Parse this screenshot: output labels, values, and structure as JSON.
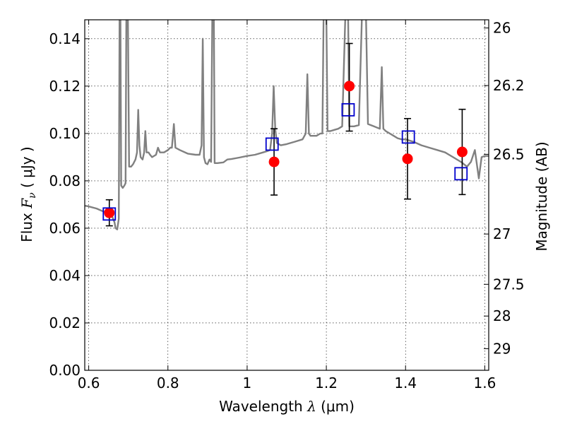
{
  "chart_data": {
    "type": "scatter",
    "xlabel": {
      "prefix": "Wavelength  ",
      "symbol": "λ",
      "unit": " (μm)"
    },
    "ylabel": {
      "prefix": "Flux  ",
      "symbol": "F",
      "sub": "ν",
      "unit": "  ( μJy )"
    },
    "y2label": "Magnitude (AB)",
    "xlim": [
      0.59,
      1.61
    ],
    "ylim": [
      0.0,
      0.148
    ],
    "grid": true,
    "x_ticks": [
      {
        "v": 0.6,
        "label": "0.6"
      },
      {
        "v": 0.8,
        "label": "0.8"
      },
      {
        "v": 1.0,
        "label": "1"
      },
      {
        "v": 1.2,
        "label": "1.2"
      },
      {
        "v": 1.4,
        "label": "1.4"
      },
      {
        "v": 1.6,
        "label": "1.6"
      }
    ],
    "y_ticks": [
      {
        "v": 0.0,
        "label": "0.00"
      },
      {
        "v": 0.02,
        "label": "0.02"
      },
      {
        "v": 0.04,
        "label": "0.04"
      },
      {
        "v": 0.06,
        "label": "0.06"
      },
      {
        "v": 0.08,
        "label": "0.08"
      },
      {
        "v": 0.1,
        "label": "0.10"
      },
      {
        "v": 0.12,
        "label": "0.12"
      },
      {
        "v": 0.14,
        "label": "0.14"
      }
    ],
    "mag_ticks": [
      {
        "mag": 26,
        "label": "26"
      },
      {
        "mag": 26.2,
        "label": "26.2"
      },
      {
        "mag": 26.5,
        "label": "26.5"
      },
      {
        "mag": 27,
        "label": "27"
      },
      {
        "mag": 27.5,
        "label": "27.5"
      },
      {
        "mag": 28,
        "label": "28"
      },
      {
        "mag": 29,
        "label": "29"
      }
    ],
    "observed": {
      "color": "#ff0000",
      "points": [
        {
          "x": 0.652,
          "y": 0.0665,
          "err_lo": 0.0055,
          "err_hi": 0.0055
        },
        {
          "x": 1.068,
          "y": 0.088,
          "err_lo": 0.014,
          "err_hi": 0.014
        },
        {
          "x": 1.258,
          "y": 0.12,
          "err_lo": 0.019,
          "err_hi": 0.018
        },
        {
          "x": 1.405,
          "y": 0.0893,
          "err_lo": 0.017,
          "err_hi": 0.017
        },
        {
          "x": 1.543,
          "y": 0.0922,
          "err_lo": 0.018,
          "err_hi": 0.018
        }
      ]
    },
    "model_photometry": {
      "color": "#0000cc",
      "points": [
        {
          "x": 0.652,
          "y": 0.066
        },
        {
          "x": 1.063,
          "y": 0.0955
        },
        {
          "x": 1.255,
          "y": 0.11
        },
        {
          "x": 1.407,
          "y": 0.0985
        },
        {
          "x": 1.54,
          "y": 0.083
        }
      ]
    },
    "model_spectrum": {
      "color": "#808080",
      "points": [
        [
          0.59,
          0.0695
        ],
        [
          0.6,
          0.0692
        ],
        [
          0.62,
          0.0683
        ],
        [
          0.635,
          0.0672
        ],
        [
          0.65,
          0.0662
        ],
        [
          0.66,
          0.0646
        ],
        [
          0.665,
          0.0625
        ],
        [
          0.668,
          0.06
        ],
        [
          0.672,
          0.0595
        ],
        [
          0.676,
          0.064
        ],
        [
          0.678,
          0.15
        ],
        [
          0.68,
          0.15
        ],
        [
          0.682,
          0.078
        ],
        [
          0.686,
          0.077
        ],
        [
          0.69,
          0.078
        ],
        [
          0.693,
          0.079
        ],
        [
          0.695,
          0.15
        ],
        [
          0.699,
          0.15
        ],
        [
          0.702,
          0.086
        ],
        [
          0.707,
          0.086
        ],
        [
          0.712,
          0.087
        ],
        [
          0.718,
          0.089
        ],
        [
          0.722,
          0.092
        ],
        [
          0.725,
          0.11
        ],
        [
          0.728,
          0.095
        ],
        [
          0.731,
          0.09
        ],
        [
          0.736,
          0.089
        ],
        [
          0.74,
          0.092
        ],
        [
          0.743,
          0.101
        ],
        [
          0.746,
          0.092
        ],
        [
          0.751,
          0.092
        ],
        [
          0.755,
          0.091
        ],
        [
          0.76,
          0.09
        ],
        [
          0.77,
          0.091
        ],
        [
          0.775,
          0.094
        ],
        [
          0.78,
          0.092
        ],
        [
          0.79,
          0.092
        ],
        [
          0.8,
          0.093
        ],
        [
          0.806,
          0.094
        ],
        [
          0.81,
          0.094
        ],
        [
          0.815,
          0.104
        ],
        [
          0.819,
          0.094
        ],
        [
          0.83,
          0.093
        ],
        [
          0.85,
          0.0915
        ],
        [
          0.87,
          0.091
        ],
        [
          0.88,
          0.091
        ],
        [
          0.885,
          0.095
        ],
        [
          0.888,
          0.14
        ],
        [
          0.891,
          0.09
        ],
        [
          0.895,
          0.0875
        ],
        [
          0.9,
          0.087
        ],
        [
          0.905,
          0.089
        ],
        [
          0.909,
          0.088
        ],
        [
          0.912,
          0.15
        ],
        [
          0.916,
          0.15
        ],
        [
          0.918,
          0.0875
        ],
        [
          0.925,
          0.0875
        ],
        [
          0.94,
          0.0878
        ],
        [
          0.95,
          0.089
        ],
        [
          0.96,
          0.0892
        ],
        [
          0.98,
          0.0898
        ],
        [
          1.0,
          0.0905
        ],
        [
          1.02,
          0.091
        ],
        [
          1.04,
          0.092
        ],
        [
          1.05,
          0.0925
        ],
        [
          1.058,
          0.093
        ],
        [
          1.063,
          0.1
        ],
        [
          1.067,
          0.12
        ],
        [
          1.071,
          0.102
        ],
        [
          1.075,
          0.096
        ],
        [
          1.085,
          0.095
        ],
        [
          1.1,
          0.0955
        ],
        [
          1.12,
          0.0965
        ],
        [
          1.14,
          0.0975
        ],
        [
          1.148,
          0.1
        ],
        [
          1.152,
          0.125
        ],
        [
          1.156,
          0.1
        ],
        [
          1.16,
          0.099
        ],
        [
          1.175,
          0.099
        ],
        [
          1.185,
          0.1
        ],
        [
          1.19,
          0.1
        ],
        [
          1.193,
          0.15
        ],
        [
          1.2,
          0.15
        ],
        [
          1.203,
          0.101
        ],
        [
          1.21,
          0.101
        ],
        [
          1.22,
          0.1015
        ],
        [
          1.23,
          0.102
        ],
        [
          1.24,
          0.103
        ],
        [
          1.248,
          0.15
        ],
        [
          1.255,
          0.15
        ],
        [
          1.258,
          0.103
        ],
        [
          1.27,
          0.103
        ],
        [
          1.282,
          0.1035
        ],
        [
          1.29,
          0.15
        ],
        [
          1.3,
          0.15
        ],
        [
          1.305,
          0.104
        ],
        [
          1.32,
          0.103
        ],
        [
          1.335,
          0.102
        ],
        [
          1.34,
          0.128
        ],
        [
          1.344,
          0.102
        ],
        [
          1.35,
          0.101
        ],
        [
          1.37,
          0.099
        ],
        [
          1.38,
          0.098
        ],
        [
          1.39,
          0.0975
        ],
        [
          1.4,
          0.0975
        ],
        [
          1.42,
          0.0965
        ],
        [
          1.44,
          0.095
        ],
        [
          1.46,
          0.094
        ],
        [
          1.48,
          0.093
        ],
        [
          1.5,
          0.092
        ],
        [
          1.52,
          0.09
        ],
        [
          1.54,
          0.088
        ],
        [
          1.555,
          0.086
        ],
        [
          1.565,
          0.088
        ],
        [
          1.575,
          0.093
        ],
        [
          1.585,
          0.081
        ],
        [
          1.592,
          0.09
        ],
        [
          1.6,
          0.0905
        ],
        [
          1.61,
          0.0905
        ]
      ]
    }
  }
}
